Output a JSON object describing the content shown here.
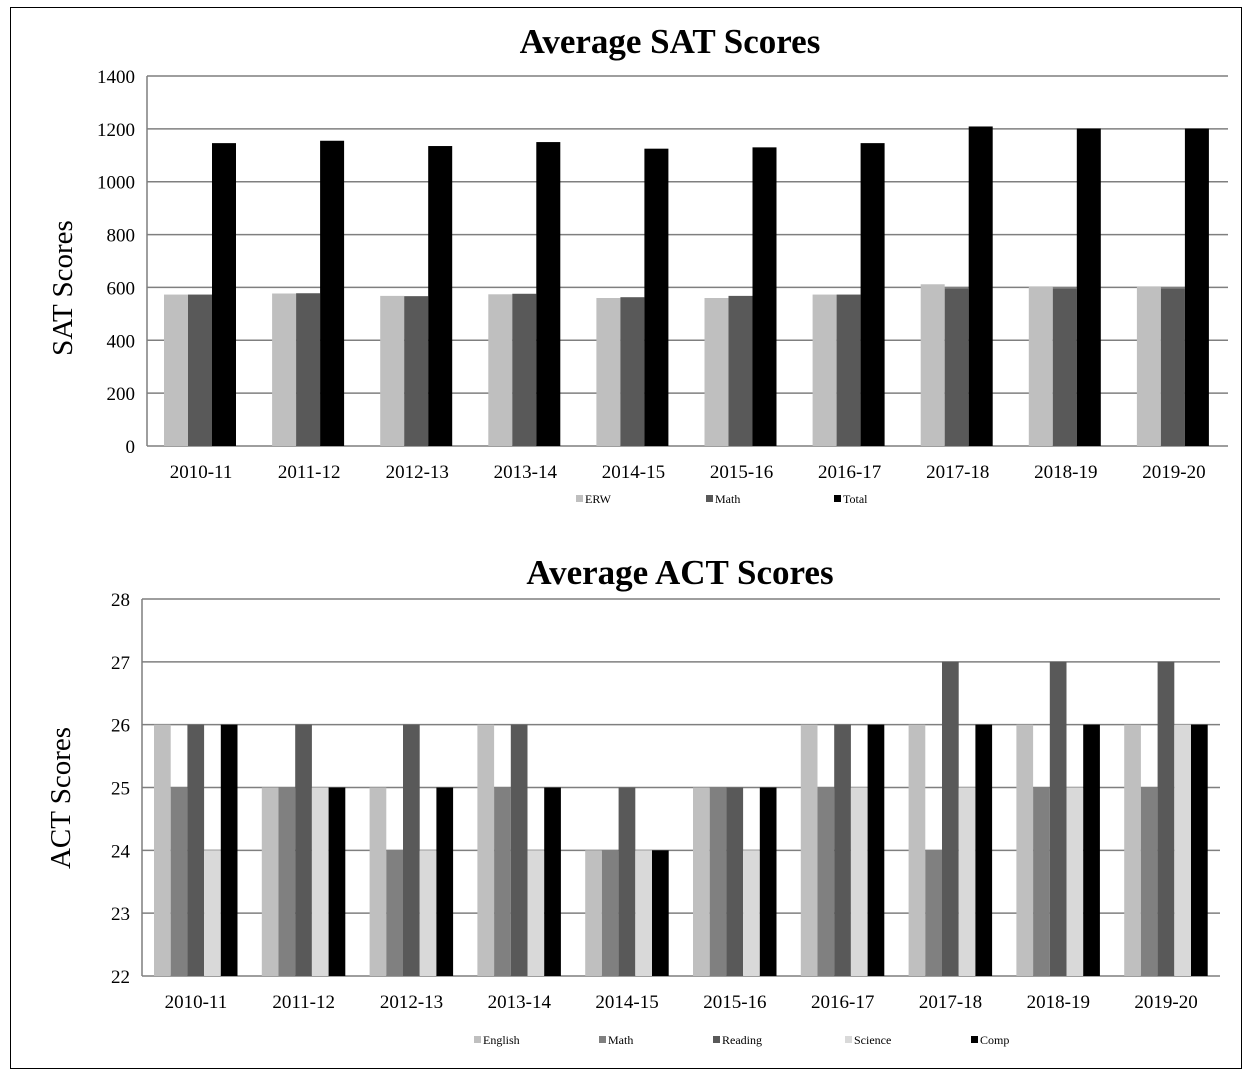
{
  "chart_data": [
    {
      "type": "bar",
      "title": "Average SAT Scores",
      "xlabel": "",
      "ylabel": "SAT Scores",
      "ylim": [
        0,
        1400
      ],
      "yticks": [
        0,
        200,
        400,
        600,
        800,
        1000,
        1200,
        1400
      ],
      "grid": true,
      "legend_position": "bottom",
      "categories": [
        "2010-11",
        "2011-12",
        "2012-13",
        "2013-14",
        "2014-15",
        "2015-16",
        "2016-17",
        "2017-18",
        "2018-19",
        "2019-20"
      ],
      "series": [
        {
          "name": "ERW",
          "color": "#bfbfbf",
          "values": [
            573,
            577,
            568,
            574,
            560,
            560,
            573,
            612,
            604,
            604
          ]
        },
        {
          "name": "Math",
          "color": "#595959",
          "values": [
            573,
            578,
            567,
            576,
            563,
            568,
            573,
            597,
            597,
            597
          ]
        },
        {
          "name": "Total",
          "color": "#000000",
          "values": [
            1146,
            1155,
            1135,
            1150,
            1125,
            1130,
            1146,
            1209,
            1201,
            1201
          ]
        }
      ]
    },
    {
      "type": "bar",
      "title": "Average ACT Scores",
      "xlabel": "",
      "ylabel": "ACT Scores",
      "ylim": [
        22,
        28
      ],
      "yticks": [
        22,
        23,
        24,
        25,
        26,
        27,
        28
      ],
      "grid": true,
      "legend_position": "bottom",
      "categories": [
        "2010-11",
        "2011-12",
        "2012-13",
        "2013-14",
        "2014-15",
        "2015-16",
        "2016-17",
        "2017-18",
        "2018-19",
        "2019-20"
      ],
      "series": [
        {
          "name": "English",
          "color": "#bfbfbf",
          "values": [
            26,
            25,
            25,
            26,
            24,
            25,
            26,
            26,
            26,
            26
          ]
        },
        {
          "name": "Math",
          "color": "#808080",
          "values": [
            25,
            25,
            24,
            25,
            24,
            25,
            25,
            24,
            25,
            25
          ]
        },
        {
          "name": "Reading",
          "color": "#595959",
          "values": [
            26,
            26,
            26,
            26,
            25,
            25,
            26,
            27,
            27,
            27
          ]
        },
        {
          "name": "Science",
          "color": "#d9d9d9",
          "values": [
            24,
            25,
            24,
            24,
            24,
            24,
            25,
            25,
            25,
            26
          ]
        },
        {
          "name": "Comp",
          "color": "#000000",
          "values": [
            26,
            25,
            25,
            25,
            24,
            25,
            26,
            26,
            26,
            26
          ]
        }
      ]
    }
  ]
}
